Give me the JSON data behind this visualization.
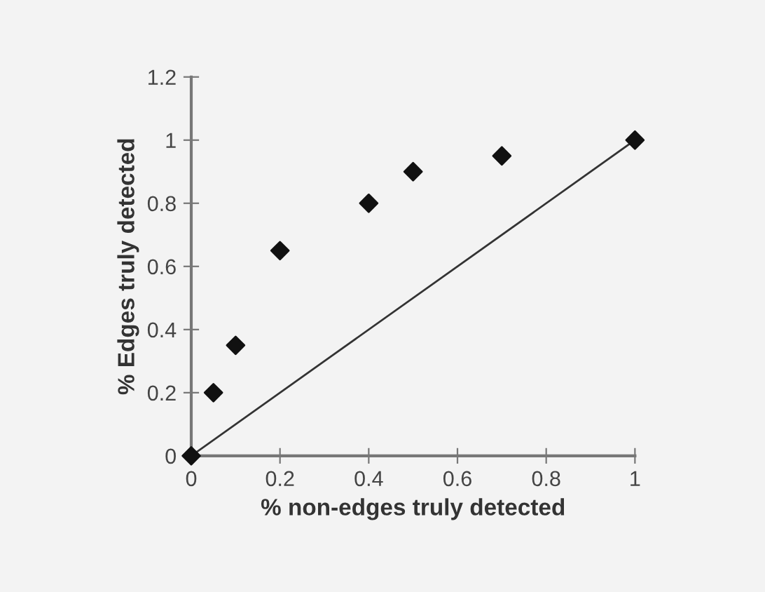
{
  "chart_data": {
    "type": "scatter",
    "xlabel": "% non-edges truly detected",
    "ylabel": "% Edges truly detected",
    "xlim": [
      0,
      1
    ],
    "ylim": [
      0,
      1.2
    ],
    "xticks": [
      0,
      0.2,
      0.4,
      0.6,
      0.8,
      1
    ],
    "yticks": [
      0,
      0.2,
      0.4,
      0.6,
      0.8,
      1,
      1.2
    ],
    "grid": false,
    "legend": false,
    "marker": "diamond",
    "series": [
      {
        "x": [
          0,
          0.05,
          0.1,
          0.2,
          0.4,
          0.5,
          0.7,
          1
        ],
        "values": [
          0,
          0.2,
          0.35,
          0.65,
          0.8,
          0.9,
          0.95,
          1
        ],
        "color": "#111111"
      },
      {
        "type": "line",
        "x": [
          0,
          1
        ],
        "values": [
          0,
          1
        ],
        "color": "#333333",
        "line_style": "solid",
        "marker": "none"
      }
    ]
  }
}
